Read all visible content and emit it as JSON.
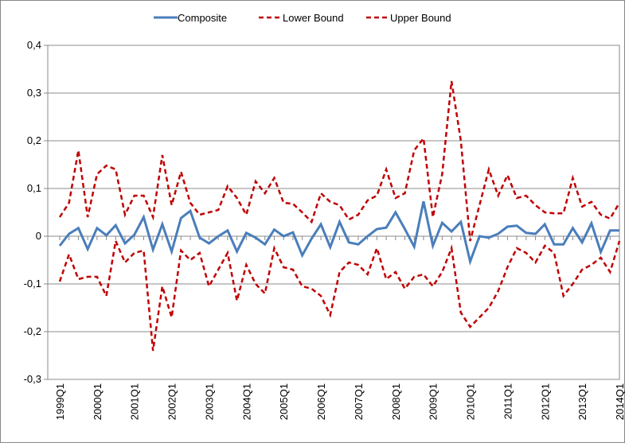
{
  "chart_data": {
    "type": "line",
    "categories": [
      "1999Q1",
      null,
      null,
      null,
      "2000Q1",
      null,
      null,
      null,
      "2001Q1",
      null,
      null,
      null,
      "2002Q1",
      null,
      null,
      null,
      "2003Q1",
      null,
      null,
      null,
      "2004Q1",
      null,
      null,
      null,
      "2005Q1",
      null,
      null,
      null,
      "2006Q1",
      null,
      null,
      null,
      "2007Q1",
      null,
      null,
      null,
      "2008Q1",
      null,
      null,
      null,
      "2009Q1",
      null,
      null,
      null,
      "2010Q1",
      null,
      null,
      null,
      "2011Q1",
      null,
      null,
      null,
      "2012Q1",
      null,
      null,
      null,
      "2013Q1",
      null,
      null,
      null,
      "2014Q1"
    ],
    "series": [
      {
        "name": "Composite",
        "color": "#4a7ebb",
        "dashed": false,
        "values": [
          -0.02,
          0.005,
          0.017,
          -0.027,
          0.017,
          0.002,
          0.023,
          -0.015,
          0.003,
          0.04,
          -0.028,
          0.025,
          -0.032,
          0.038,
          0.053,
          -0.003,
          -0.015,
          0.0,
          0.012,
          -0.032,
          0.007,
          -0.003,
          -0.017,
          0.014,
          0.0,
          0.008,
          -0.04,
          -0.005,
          0.025,
          -0.023,
          0.03,
          -0.013,
          -0.017,
          0.0,
          0.015,
          0.018,
          0.05,
          0.015,
          -0.022,
          0.073,
          -0.02,
          0.028,
          0.01,
          0.03,
          -0.053,
          0.0,
          -0.003,
          0.005,
          0.02,
          0.022,
          0.007,
          0.005,
          0.025,
          -0.017,
          -0.017,
          0.017,
          -0.013,
          0.027,
          -0.033,
          0.012,
          0.012
        ]
      },
      {
        "name": "Lower Bound",
        "color": "#c00000",
        "dashed": true,
        "values": [
          -0.095,
          -0.038,
          -0.09,
          -0.085,
          -0.085,
          -0.125,
          -0.01,
          -0.055,
          -0.035,
          -0.03,
          -0.24,
          -0.105,
          -0.17,
          -0.03,
          -0.05,
          -0.035,
          -0.105,
          -0.07,
          -0.035,
          -0.135,
          -0.06,
          -0.1,
          -0.12,
          -0.025,
          -0.065,
          -0.07,
          -0.105,
          -0.11,
          -0.125,
          -0.165,
          -0.075,
          -0.055,
          -0.06,
          -0.08,
          -0.025,
          -0.09,
          -0.075,
          -0.11,
          -0.085,
          -0.08,
          -0.105,
          -0.075,
          -0.025,
          -0.16,
          -0.19,
          -0.17,
          -0.15,
          -0.115,
          -0.065,
          -0.025,
          -0.035,
          -0.055,
          -0.02,
          -0.035,
          -0.125,
          -0.1,
          -0.07,
          -0.06,
          -0.045,
          -0.075,
          -0.01
        ]
      },
      {
        "name": "Upper Bound",
        "color": "#c00000",
        "dashed": true,
        "values": [
          0.04,
          0.07,
          0.18,
          0.04,
          0.13,
          0.148,
          0.14,
          0.045,
          0.085,
          0.085,
          0.04,
          0.17,
          0.065,
          0.135,
          0.07,
          0.045,
          0.05,
          0.055,
          0.105,
          0.08,
          0.045,
          0.115,
          0.09,
          0.122,
          0.07,
          0.068,
          0.05,
          0.03,
          0.09,
          0.072,
          0.065,
          0.035,
          0.045,
          0.075,
          0.085,
          0.14,
          0.08,
          0.09,
          0.18,
          0.205,
          0.04,
          0.13,
          0.325,
          0.2,
          -0.01,
          0.065,
          0.14,
          0.085,
          0.128,
          0.08,
          0.085,
          0.065,
          0.05,
          0.048,
          0.048,
          0.122,
          0.062,
          0.072,
          0.045,
          0.037,
          0.07
        ]
      }
    ],
    "ylim": [
      -0.3,
      0.4
    ],
    "yticks": [
      {
        "value": -0.3,
        "label": "-0,3"
      },
      {
        "value": -0.2,
        "label": "-0,2"
      },
      {
        "value": -0.1,
        "label": "-0,1"
      },
      0,
      {
        "value": 0.1,
        "label": "0,1"
      },
      {
        "value": 0.2,
        "label": "0,2"
      },
      {
        "value": 0.3,
        "label": "0,3"
      },
      {
        "value": 0.4,
        "label": "0,4"
      }
    ],
    "grid": true,
    "legend": "top"
  }
}
